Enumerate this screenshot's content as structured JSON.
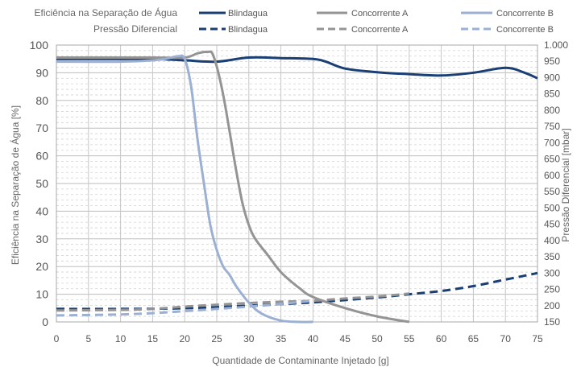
{
  "chart_data": {
    "type": "line",
    "xlabel": "Quantidade de Contaminante Injetado [g]",
    "ylabel_left": "Eficiência na Separação de Água [%]",
    "ylabel_right": "Pressão Diferencial [mbar]",
    "x_ticks": [
      "0",
      "5",
      "10",
      "15",
      "20",
      "25",
      "30",
      "35",
      "40",
      "45",
      "50",
      "55",
      "60",
      "65",
      "70",
      "75"
    ],
    "y_left_ticks": [
      "0",
      "10",
      "20",
      "30",
      "40",
      "50",
      "60",
      "70",
      "80",
      "90",
      "100"
    ],
    "y_right_ticks": [
      "150",
      "200",
      "250",
      "300",
      "350",
      "400",
      "450",
      "500",
      "550",
      "600",
      "650",
      "700",
      "750",
      "800",
      "850",
      "900",
      "950",
      "1.000"
    ],
    "xlim": [
      0,
      75
    ],
    "ylim_left": [
      0,
      100
    ],
    "ylim_right": [
      150,
      1000
    ],
    "grid": true,
    "legend": {
      "groups": [
        {
          "title": "Eficiência na Separação de Água",
          "style": "solid"
        },
        {
          "title": "Pressão Diferencial",
          "style": "dashed"
        }
      ],
      "series_names": [
        "Blindagua",
        "Concorrente A",
        "Concorrente B"
      ]
    },
    "colors": {
      "Blindagua": "#1a3f74",
      "Concorrente A": "#949494",
      "Concorrente B": "#9cb0d4"
    },
    "series": [
      {
        "name": "Blindagua",
        "axis": "left",
        "style": "solid",
        "x": [
          0,
          10,
          15,
          20,
          25,
          30,
          35,
          40,
          42,
          45,
          50,
          55,
          60,
          65,
          70,
          73,
          75
        ],
        "y": [
          95,
          95,
          95,
          94.5,
          94,
          95.5,
          95.3,
          95,
          94,
          91.5,
          90.2,
          89.5,
          89,
          90,
          91.8,
          90,
          88
        ]
      },
      {
        "name": "Concorrente A",
        "axis": "left",
        "style": "solid",
        "x": [
          0,
          10,
          15,
          20,
          22,
          23.5,
          24.5,
          26,
          28,
          29,
          30,
          31,
          33,
          35,
          38,
          40,
          45,
          50,
          55
        ],
        "y": [
          95.5,
          95.5,
          95.5,
          95.5,
          97,
          97.5,
          96,
          82,
          55,
          43,
          35,
          30,
          24,
          18,
          12,
          9,
          5,
          2,
          0
        ]
      },
      {
        "name": "Concorrente B",
        "axis": "left",
        "style": "solid",
        "x": [
          0,
          10,
          15,
          17,
          19,
          20,
          21,
          22,
          23,
          24,
          25,
          26,
          27,
          28,
          30,
          32,
          35,
          38,
          40
        ],
        "y": [
          94,
          94,
          94.5,
          95,
          96,
          95,
          85,
          66,
          50,
          35,
          26,
          20,
          17,
          13,
          7,
          3,
          0.5,
          0,
          0
        ]
      },
      {
        "name": "Blindagua",
        "axis": "right",
        "style": "dashed",
        "x": [
          0,
          10,
          20,
          30,
          40,
          50,
          55,
          60,
          65,
          70,
          75
        ],
        "y": [
          190,
          190,
          192,
          200,
          210,
          225,
          235,
          245,
          260,
          280,
          300
        ]
      },
      {
        "name": "Concorrente A",
        "axis": "right",
        "style": "dashed",
        "x": [
          0,
          10,
          15,
          20,
          25,
          30,
          35,
          40,
          45,
          50,
          55
        ],
        "y": [
          185,
          187,
          190,
          197,
          203,
          208,
          212,
          215,
          222,
          228,
          237
        ]
      },
      {
        "name": "Concorrente B",
        "axis": "right",
        "style": "dashed",
        "x": [
          0,
          10,
          15,
          20,
          25,
          30,
          35,
          40
        ],
        "y": [
          170,
          173,
          177,
          183,
          190,
          197,
          205,
          215
        ]
      }
    ]
  }
}
